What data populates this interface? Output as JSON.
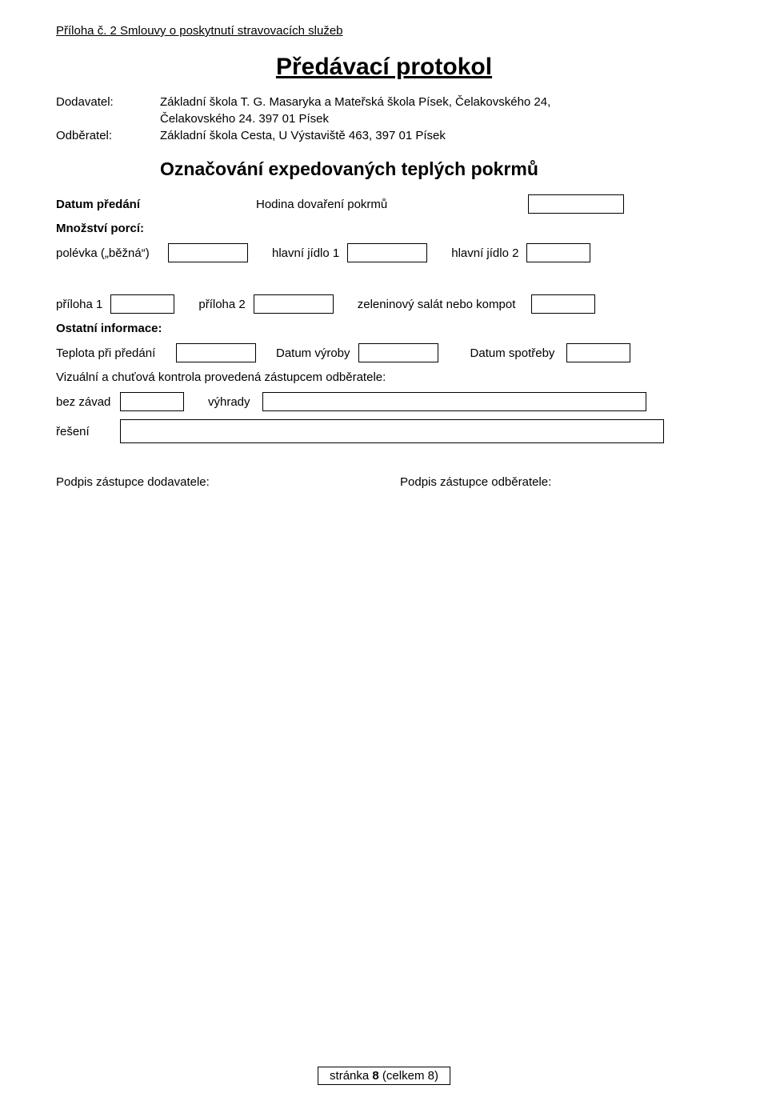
{
  "header": "Příloha č. 2 Smlouvy o poskytnutí stravovacích služeb",
  "title": "Předávací protokol",
  "supplier": {
    "label": "Dodavatel:",
    "line1": "Základní škola T. G. Masaryka a Mateřská škola Písek, Čelakovského 24,",
    "line2": "Čelakovského 24. 397 01 Písek"
  },
  "customer": {
    "label": "Odběratel:",
    "value": "Základní škola Cesta, U Výstaviště 463, 397 01 Písek"
  },
  "subtitle": "Označování expedovaných teplých pokrmů",
  "handover_date_label": "Datum předání",
  "cook_time_label": "Hodina dovaření pokrmů",
  "portions_label": "Množství porcí:",
  "soup_label": "polévka („běžná“)",
  "main1_label": "hlavní jídlo 1",
  "main2_label": "hlavní jídlo 2",
  "side1_label": "příloha 1",
  "side2_label": "příloha 2",
  "salad_label": "zeleninový salát nebo kompot",
  "other_info_label": "Ostatní informace:",
  "temp_label": "Teplota při předání",
  "prod_date_label": "Datum výroby",
  "expiry_label": "Datum spotřeby",
  "visual_check": "Vizuální a chuťová kontrola provedená zástupcem odběratele:",
  "no_defects_label": "bez závad",
  "remarks_label": "výhrady",
  "solution_label": "řešení",
  "supplier_sig": "Podpis zástupce dodavatele:",
  "customer_sig": "Podpis zástupce odběratele:",
  "footer": {
    "prefix": "stránka ",
    "page": "8",
    "suffix": " (celkem 8)"
  },
  "box_widths": {
    "cook_time": 120,
    "soup": 100,
    "main1": 100,
    "main2": 80,
    "side1": 80,
    "side2": 100,
    "salad": 80,
    "temp": 100,
    "prod_date": 100,
    "expiry": 80,
    "no_defects": 80,
    "remarks": 480,
    "solution": 680
  }
}
